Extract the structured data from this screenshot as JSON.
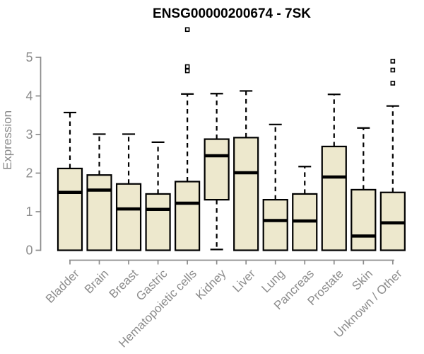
{
  "title": "ENSG00000200674 - 7SK",
  "chart_data": {
    "type": "boxplot",
    "title": "ENSG00000200674 - 7SK",
    "xlabel": "",
    "ylabel": "Expression",
    "ylim": [
      0,
      5
    ],
    "yticks": [
      0,
      1,
      2,
      3,
      4,
      5
    ],
    "grid": false,
    "legend": false,
    "categories": [
      "Bladder",
      "Brain",
      "Breast",
      "Gastric",
      "Hematopoietic cells",
      "Kidney",
      "Liver",
      "Lung",
      "Pancreas",
      "Prostate",
      "Skin",
      "Unknown / Other"
    ],
    "boxes": [
      {
        "category": "Bladder",
        "whisker_low": 0,
        "q1": 0,
        "median": 1.5,
        "q3": 2.12,
        "whisker_high": 3.57,
        "outliers": []
      },
      {
        "category": "Brain",
        "whisker_low": 0,
        "q1": 0,
        "median": 1.56,
        "q3": 1.95,
        "whisker_high": 3.01,
        "outliers": []
      },
      {
        "category": "Breast",
        "whisker_low": 0,
        "q1": 0,
        "median": 1.07,
        "q3": 1.72,
        "whisker_high": 3.01,
        "outliers": []
      },
      {
        "category": "Gastric",
        "whisker_low": 0,
        "q1": 0,
        "median": 1.06,
        "q3": 1.46,
        "whisker_high": 2.8,
        "outliers": []
      },
      {
        "category": "Hematopoietic cells",
        "whisker_low": 0,
        "q1": 0,
        "median": 1.22,
        "q3": 1.78,
        "whisker_high": 4.05,
        "outliers": [
          4.65,
          4.76,
          5.72
        ]
      },
      {
        "category": "Kidney",
        "whisker_low": 0.02,
        "q1": 1.31,
        "median": 2.45,
        "q3": 2.88,
        "whisker_high": 4.06,
        "outliers": []
      },
      {
        "category": "Liver",
        "whisker_low": 0,
        "q1": 0,
        "median": 2.01,
        "q3": 2.92,
        "whisker_high": 4.13,
        "outliers": []
      },
      {
        "category": "Lung",
        "whisker_low": 0,
        "q1": 0,
        "median": 0.77,
        "q3": 1.31,
        "whisker_high": 3.26,
        "outliers": []
      },
      {
        "category": "Pancreas",
        "whisker_low": 0,
        "q1": 0,
        "median": 0.76,
        "q3": 1.46,
        "whisker_high": 2.17,
        "outliers": []
      },
      {
        "category": "Prostate",
        "whisker_low": 0,
        "q1": 0,
        "median": 1.9,
        "q3": 2.69,
        "whisker_high": 4.04,
        "outliers": []
      },
      {
        "category": "Skin",
        "whisker_low": 0,
        "q1": 0,
        "median": 0.37,
        "q3": 1.57,
        "whisker_high": 3.17,
        "outliers": []
      },
      {
        "category": "Unknown / Other",
        "whisker_low": 0,
        "q1": 0,
        "median": 0.71,
        "q3": 1.5,
        "whisker_high": 3.74,
        "outliers": [
          4.33,
          4.67,
          4.9
        ]
      }
    ],
    "colors": {
      "box_fill": "#EDE8CD",
      "box_stroke": "#000000",
      "median": "#000000",
      "axis": "#8C8C8C",
      "axis_text": "#8C8C8C",
      "title_text": "#000000",
      "outlier_fill": "#FFFFFF",
      "background": "#FFFFFF"
    }
  }
}
